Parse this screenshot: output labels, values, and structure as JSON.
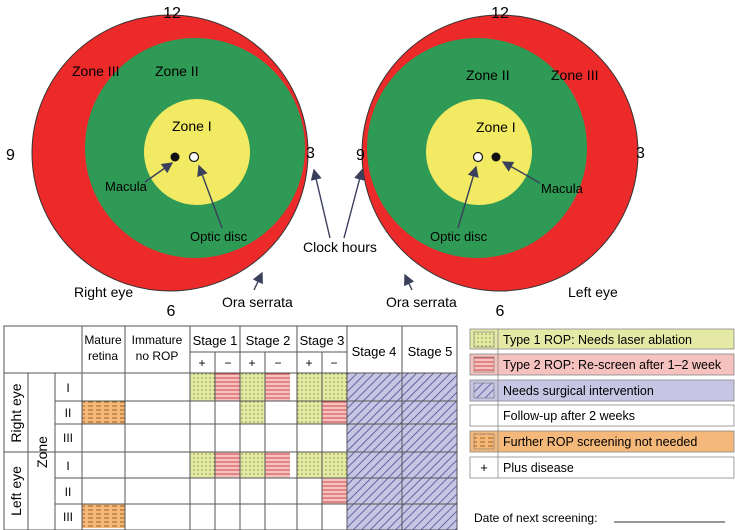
{
  "eyes": {
    "right": {
      "clock_top": "12",
      "clock_left": "9",
      "clock_right": "3",
      "clock_bottom": "6",
      "zone1": "Zone I",
      "zone2": "Zone II",
      "zone3": "Zone III",
      "macula": "Macula",
      "optic_disc": "Optic disc",
      "ora": "Ora serrata",
      "eye_label": "Right eye"
    },
    "left": {
      "clock_top": "12",
      "clock_left": "9",
      "clock_right": "3",
      "clock_bottom": "6",
      "zone1": "Zone I",
      "zone2": "Zone II",
      "zone3": "Zone III",
      "macula": "Macula",
      "optic_disc": "Optic disc",
      "ora": "Ora serrata",
      "eye_label": "Left eye"
    },
    "clock_hours": "Clock hours"
  },
  "table": {
    "mature": [
      "Mature",
      "retina"
    ],
    "immature": [
      "Immature",
      "no ROP"
    ],
    "stage1": "Stage 1",
    "stage2": "Stage 2",
    "stage3": "Stage 3",
    "stage4": "Stage 4",
    "stage5": "Stage 5",
    "plus": "+",
    "minus": "−",
    "right_eye": "Right eye",
    "left_eye": "Left eye",
    "zone": "Zone",
    "row_zones": [
      "I",
      "II",
      "III",
      "I",
      "II",
      "III"
    ]
  },
  "legend": {
    "items": [
      "Type 1 ROP: Needs laser ablation",
      "Type 2 ROP: Re-screen after 1–2 week",
      "Needs surgical intervention",
      "Follow-up after 2 weeks",
      "Further ROP screening not needed",
      "Plus disease"
    ],
    "plus_symbol": "+",
    "next_screening": "Date of next screening:"
  },
  "colors": {
    "zone3": "#ec2a2a",
    "zone2": "#2f9a55",
    "zone1": "#f2ea63",
    "type1_bg": "#e4eaa6",
    "type2_bg": "#f6c2bf",
    "surgical_bg": "#c6c6e4",
    "orange_bg": "#f4b97a",
    "line": "#555"
  }
}
